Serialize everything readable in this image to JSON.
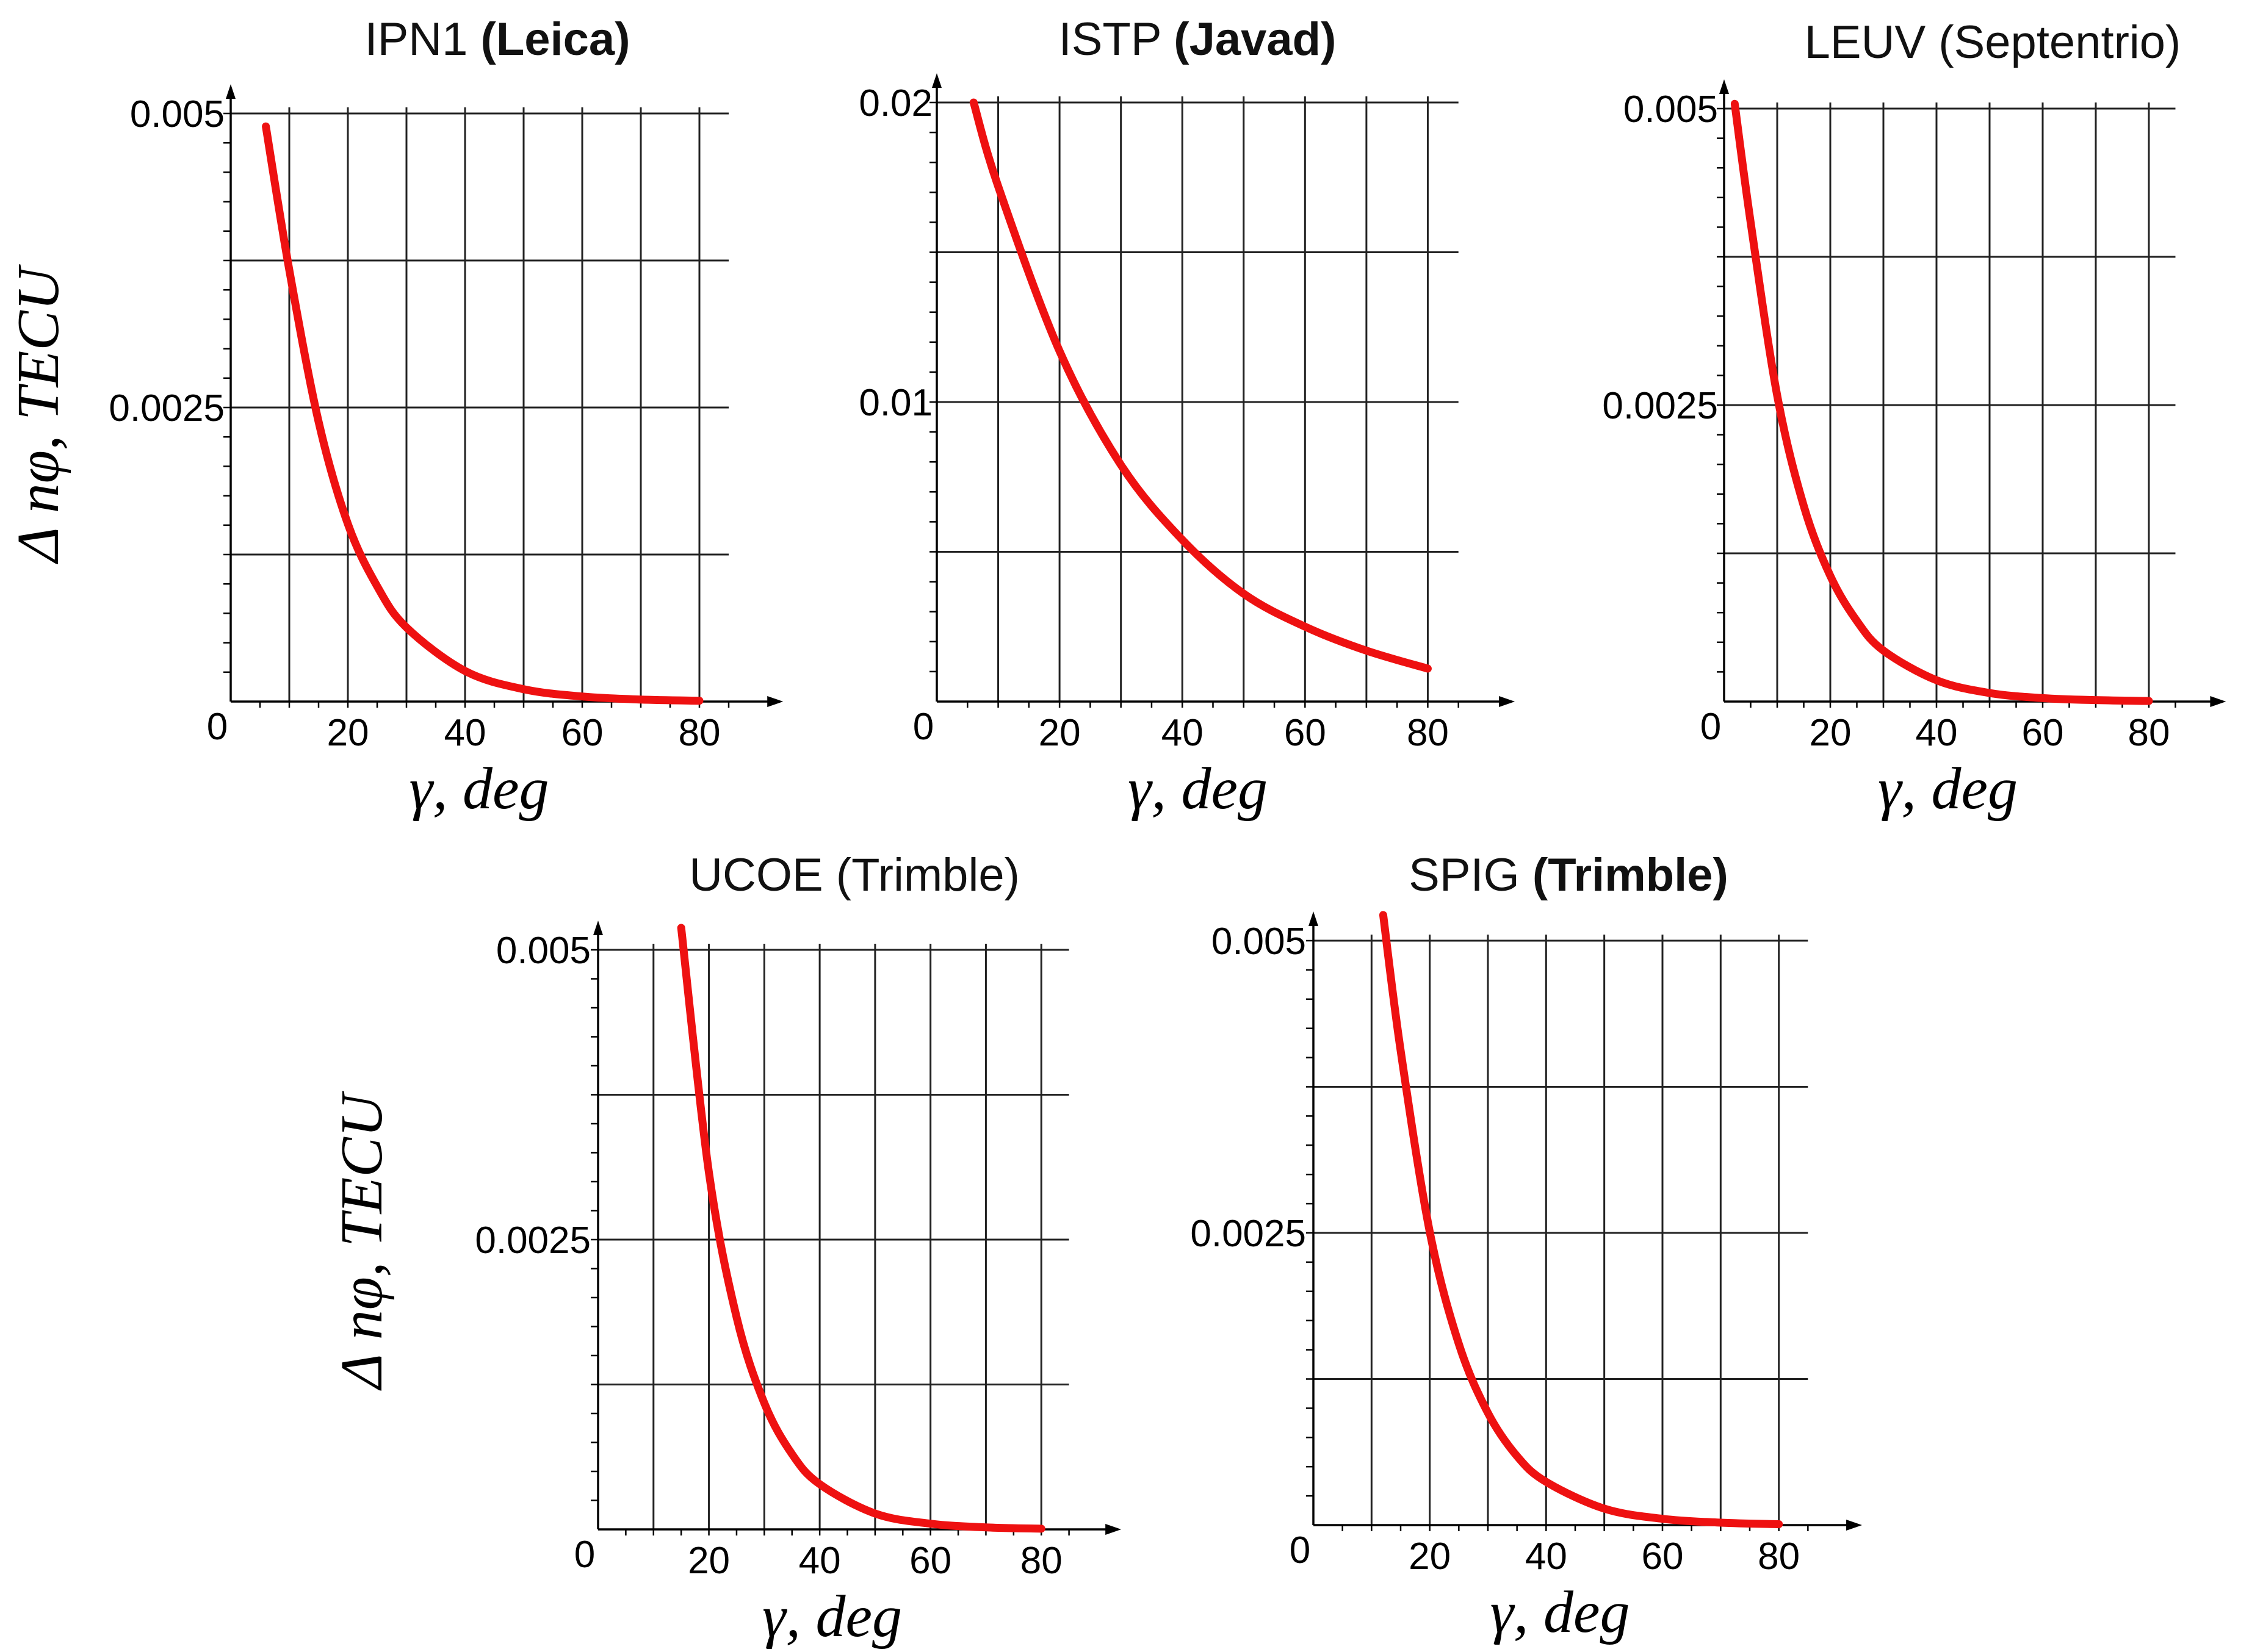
{
  "colors": {
    "curve": "#ee1111",
    "grid": "#222222",
    "text": "#000000"
  },
  "y_axis_label": "Δ nφ, TECU",
  "x_axis_label": "γ, deg",
  "chart_data": [
    {
      "type": "line",
      "title_station": "IPN1",
      "title_receiver": "(Leica)",
      "xlabel": "γ, deg",
      "ylabel": "Δ nφ, TECU",
      "xlim": [
        0,
        90
      ],
      "ylim": [
        0,
        0.005
      ],
      "x_ticks": [
        20,
        40,
        60,
        80
      ],
      "x_tick_labels": [
        "0",
        "20",
        "40",
        "60",
        "80"
      ],
      "y_tick_labels": [
        "0.005",
        "0.0025"
      ],
      "y_tick_values": [
        0.005,
        0.0025
      ],
      "y_grid": [
        0.00125,
        0.0025,
        0.00375,
        0.005
      ],
      "series": [
        {
          "name": "IPN1",
          "x": [
            6,
            10,
            15,
            20,
            25,
            30,
            40,
            50,
            60,
            70,
            80
          ],
          "y": [
            0.00489,
            0.00367,
            0.00238,
            0.00151,
            0.00098,
            0.00063,
            0.00026,
            0.000105,
            4.3e-05,
            1.7e-05,
            7.1e-06
          ]
        }
      ]
    },
    {
      "type": "line",
      "title_station": "ISTP",
      "title_receiver": "(Javad)",
      "xlabel": "γ, deg",
      "ylabel": "Δ nφ, TECU",
      "xlim": [
        0,
        90
      ],
      "ylim": [
        0,
        0.02
      ],
      "x_ticks": [
        20,
        40,
        60,
        80
      ],
      "x_tick_labels": [
        "0",
        "20",
        "40",
        "60",
        "80"
      ],
      "y_tick_labels": [
        "0.02",
        "0.01"
      ],
      "y_tick_values": [
        0.02,
        0.01
      ],
      "y_grid": [
        0.005,
        0.01,
        0.015,
        0.02
      ],
      "series": [
        {
          "name": "ISTP",
          "x": [
            6,
            10,
            20,
            30,
            40,
            50,
            60,
            70,
            80
          ],
          "y": [
            0.02,
            0.0172,
            0.0117,
            0.0079,
            0.0054,
            0.0036,
            0.0025,
            0.0017,
            0.0011
          ]
        }
      ]
    },
    {
      "type": "line",
      "title_station": "LEUV",
      "title_receiver": "(Septentrio)",
      "xlabel": "γ, deg",
      "ylabel": "Δ nφ, TECU",
      "xlim": [
        0,
        90
      ],
      "ylim": [
        0,
        0.005
      ],
      "x_ticks": [
        20,
        40,
        60,
        80
      ],
      "x_tick_labels": [
        "0",
        "20",
        "40",
        "60",
        "80"
      ],
      "y_tick_labels": [
        "0.005",
        "0.0025"
      ],
      "y_tick_values": [
        0.005,
        0.0025
      ],
      "y_grid": [
        0.00125,
        0.0025,
        0.00375,
        0.005
      ],
      "series": [
        {
          "name": "LEUV",
          "x": [
            2,
            5,
            10,
            15,
            20,
            25,
            30,
            40,
            50,
            60,
            70,
            80
          ],
          "y": [
            0.00504,
            0.00404,
            0.00258,
            0.00165,
            0.00106,
            0.00068,
            0.00043,
            0.00018,
            7.2e-05,
            2.9e-05,
            1.2e-05,
            5e-06
          ]
        }
      ]
    },
    {
      "type": "line",
      "title_station": "UCOE",
      "title_receiver": "(Trimble)",
      "xlabel": "γ, deg",
      "ylabel": "Δ nφ, TECU",
      "xlim": [
        0,
        90
      ],
      "ylim": [
        0,
        0.005
      ],
      "x_ticks": [
        20,
        40,
        60,
        80
      ],
      "x_tick_labels": [
        "0",
        "20",
        "40",
        "60",
        "80"
      ],
      "y_tick_labels": [
        "0.005",
        "0.0025"
      ],
      "y_tick_values": [
        0.005,
        0.0025
      ],
      "y_grid": [
        0.00125,
        0.0025,
        0.00375,
        0.005
      ],
      "series": [
        {
          "name": "UCOE",
          "x": [
            15,
            20,
            25,
            30,
            35,
            40,
            50,
            60,
            70,
            80
          ],
          "y": [
            0.00519,
            0.00308,
            0.00183,
            0.00109,
            0.00065,
            0.00039,
            0.000137,
            4.9e-05,
            1.7e-05,
            6e-06
          ]
        }
      ]
    },
    {
      "type": "line",
      "title_station": "SPIG",
      "title_receiver": "(Trimble)",
      "xlabel": "γ, deg",
      "ylabel": "Δ nφ, TECU",
      "xlim": [
        0,
        90
      ],
      "ylim": [
        0,
        0.005
      ],
      "x_ticks": [
        20,
        40,
        60,
        80
      ],
      "x_tick_labels": [
        "0",
        "20",
        "40",
        "60",
        "80"
      ],
      "y_tick_labels": [
        "0.005",
        "0.0025"
      ],
      "y_tick_values": [
        0.005,
        0.0025
      ],
      "y_grid": [
        0.00125,
        0.0025,
        0.00375,
        0.005
      ],
      "series": [
        {
          "name": "SPIG",
          "x": [
            12,
            15,
            20,
            25,
            30,
            35,
            40,
            50,
            60,
            70,
            80
          ],
          "y": [
            0.00522,
            0.00406,
            0.00251,
            0.00155,
            0.00096,
            0.00059,
            0.00037,
            0.000141,
            5.4e-05,
            2.1e-05,
            7.8e-06
          ]
        }
      ]
    }
  ]
}
